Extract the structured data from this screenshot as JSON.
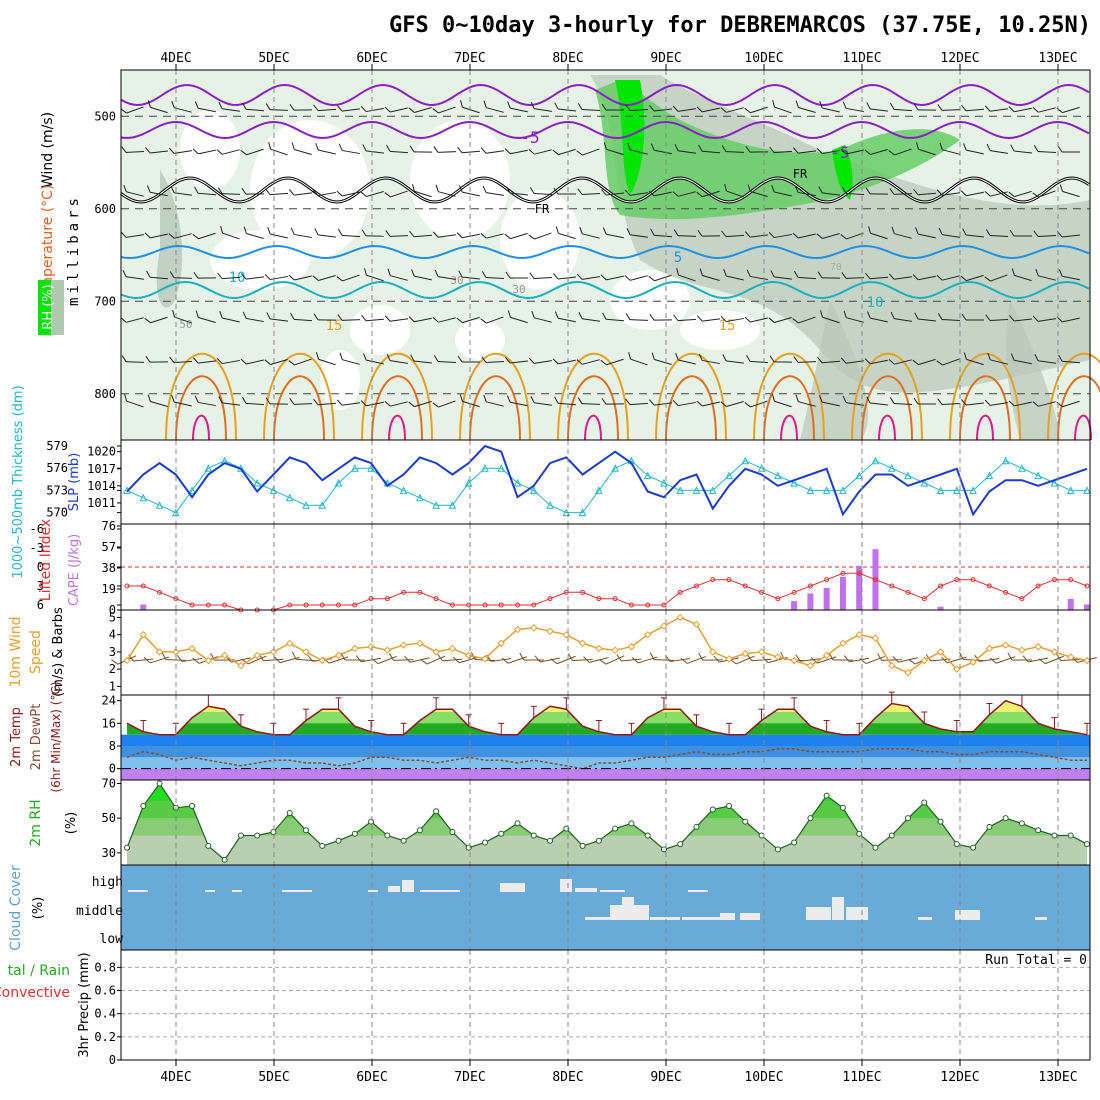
{
  "title": "GFS 0~10day 3-hourly for DEBREMARCOS (37.75E, 10.25N)",
  "dates": [
    "4DEC",
    "5DEC",
    "6DEC",
    "7DEC",
    "8DEC",
    "9DEC",
    "10DEC",
    "11DEC",
    "12DEC",
    "13DEC"
  ],
  "colors": {
    "grid": "#888888",
    "rh_light": "#e6f2e6",
    "rh_mid": "#b8c8b8",
    "rh_green": "#66cc66",
    "rh_bright": "#00e600",
    "temp_neg5": "#8a1fc4",
    "temp_0": "#000000",
    "temp_5": "#1e90e6",
    "temp_10": "#1ab0c0",
    "temp_15": "#e6a020",
    "temp_20": "#e07020",
    "temp_25": "#e01a8c",
    "slp": "#1a3ccf",
    "thickness": "#20b8c8",
    "lifted": "#e03030",
    "cape": "#c070f0",
    "wind": "#e6a030",
    "cloud_bg": "#6aaad8",
    "cloud_fg": "#ececec"
  },
  "panels": {
    "upper": {
      "ylabel_parts": [
        "RH (%)",
        "Temperature (°C)",
        "Wind (m/s)"
      ],
      "ylabel_units": "millibars",
      "yticks": [
        "500",
        "600",
        "700",
        "800"
      ],
      "contour_labels": [
        "-5",
        "-5",
        "FR",
        "FR",
        "5",
        "10",
        "10",
        "15",
        "15",
        "30",
        "30",
        "50",
        "70"
      ]
    },
    "slp": {
      "ylabel_left": "1000~500mb Thickness (dm)",
      "ylabel_right": "SLP (mb)",
      "thick_ticks": [
        "579",
        "576",
        "573",
        "570"
      ],
      "slp_ticks": [
        "1020",
        "1017",
        "1014",
        "1011"
      ]
    },
    "cape": {
      "ylabel_left": "Lifted Index",
      "ylabel_right": "CAPE (J/kg)",
      "li_ticks": [
        "-6",
        "-3",
        "0",
        "3",
        "6"
      ],
      "cape_ticks": [
        "76",
        "57",
        "38",
        "19",
        "0"
      ]
    },
    "wind": {
      "ylabel_left": "10m Wind",
      "ylabel_mid": "Speed",
      "ylabel_right": "(m/s) & Barbs",
      "yticks": [
        "5",
        "4",
        "3",
        "2",
        "1"
      ]
    },
    "temp": {
      "ylabel_1": "2m Temp",
      "ylabel_2": "2m DewPt",
      "ylabel_3": "(6hr Min/Max) (°C)",
      "yticks": [
        "24",
        "16",
        "8",
        "0"
      ]
    },
    "rh": {
      "ylabel_left": "2m RH",
      "ylabel_right": "(%)",
      "yticks": [
        "70",
        "50",
        "30"
      ]
    },
    "cloud": {
      "ylabel_left": "Cloud Cover",
      "ylabel_right": "(%)",
      "levels": [
        "high",
        "middle",
        "low"
      ]
    },
    "precip": {
      "ylabel_1": "tal / Rain",
      "ylabel_2": "Convective",
      "ylabel_3": "3hr Precip (mm)",
      "yticks": [
        "0.8",
        "0.6",
        "0.4",
        "0.2",
        "0"
      ],
      "run_total": "Run Total = 0"
    }
  },
  "chart_data": [
    {
      "type": "line",
      "title": "SLP (mb) & 1000~500mb Thickness (dm)",
      "series": [
        {
          "name": "SLP (mb)",
          "values": [
            1013,
            1016,
            1018,
            1016,
            1012,
            1016,
            1018,
            1017,
            1013,
            1016,
            1019,
            1018,
            1015,
            1017,
            1019,
            1018,
            1014,
            1016,
            1019,
            1018,
            1016,
            1018,
            1021,
            1020,
            1012,
            1014,
            1018,
            1019,
            1016,
            1018,
            1020,
            1018,
            1013,
            1012,
            1015,
            1016,
            1010,
            1014,
            1017,
            1016,
            1014,
            1015,
            1016,
            1017,
            1009,
            1013,
            1016,
            1016,
            1014,
            1015,
            1016,
            1017,
            1009,
            1013,
            1015,
            1015,
            1014,
            1015,
            1016,
            1017
          ]
        },
        {
          "name": "1000~500mb Thickness (dm)",
          "values": [
            573,
            572,
            571,
            570,
            573,
            576,
            577,
            576,
            574,
            573,
            572,
            571,
            571,
            574,
            576,
            576,
            574,
            573,
            572,
            571,
            571,
            574,
            576,
            576,
            574,
            573,
            571,
            570,
            570,
            573,
            576,
            577,
            575,
            574,
            573,
            573,
            573,
            575,
            577,
            576,
            575,
            574,
            573,
            573,
            573,
            575,
            577,
            576,
            575,
            574,
            573,
            573,
            573,
            575,
            577,
            576,
            575,
            574,
            573,
            573
          ]
        }
      ],
      "ylim_slp": [
        1008,
        1021
      ],
      "ylim_thickness": [
        569,
        579
      ]
    },
    {
      "type": "bar",
      "title": "Lifted Index & CAPE (J/kg)",
      "series": [
        {
          "name": "CAPE (J/kg)",
          "values": [
            0,
            5,
            0,
            0,
            0,
            0,
            0,
            0,
            0,
            0,
            0,
            0,
            0,
            0,
            0,
            0,
            0,
            0,
            0,
            0,
            0,
            0,
            0,
            0,
            0,
            0,
            0,
            0,
            0,
            0,
            0,
            0,
            0,
            0,
            0,
            0,
            0,
            0,
            0,
            0,
            0,
            8,
            15,
            20,
            30,
            40,
            55,
            0,
            0,
            0,
            3,
            0,
            0,
            0,
            0,
            0,
            0,
            0,
            10,
            5
          ]
        },
        {
          "name": "Lifted Index",
          "values": [
            3,
            3,
            4,
            5,
            6,
            6,
            6,
            7,
            7,
            7,
            6,
            6,
            6,
            6,
            6,
            5,
            5,
            4,
            4,
            5,
            6,
            6,
            6,
            6,
            6,
            6,
            5,
            4,
            4,
            5,
            5,
            6,
            6,
            6,
            4,
            3,
            2,
            2,
            3,
            4,
            5,
            4,
            3,
            2,
            1,
            1,
            2,
            3,
            4,
            5,
            3,
            2,
            2,
            3,
            4,
            5,
            3,
            2,
            2,
            3
          ]
        }
      ],
      "ylim_li": [
        6,
        -6
      ],
      "ylim_cape": [
        0,
        76
      ]
    },
    {
      "type": "line",
      "title": "10m Wind Speed (m/s)",
      "series": [
        {
          "name": "Speed",
          "values": [
            2.5,
            4,
            3,
            3,
            3.2,
            2.5,
            2.8,
            2.2,
            2.8,
            3,
            3.5,
            3,
            2.5,
            2.8,
            3.2,
            3.3,
            3.1,
            3.4,
            3.5,
            3.0,
            3.2,
            2.8,
            2.6,
            3.5,
            4.3,
            4.4,
            4.2,
            4.0,
            3.5,
            3.2,
            3.1,
            3.3,
            4.0,
            4.5,
            5.0,
            4.6,
            3.0,
            2.6,
            2.9,
            3.0,
            2.7,
            2.5,
            2.2,
            2.8,
            3.5,
            4.0,
            3.8,
            2.2,
            1.8,
            2.5,
            3.0,
            2.0,
            2.4,
            3.2,
            3.4,
            3.1,
            3.3,
            3.0,
            2.7,
            2.5
          ]
        }
      ],
      "ylim": [
        0.5,
        5.2
      ]
    },
    {
      "type": "area",
      "title": "2m Temp / 2m DewPt (°C)",
      "series": [
        {
          "name": "2m Temp",
          "values": [
            16,
            13,
            12,
            12,
            18,
            22,
            21,
            15,
            13,
            12,
            12,
            17,
            21,
            21,
            15,
            13,
            12,
            12,
            17,
            21,
            21,
            15,
            13,
            12,
            12,
            18,
            22,
            21,
            15,
            13,
            12,
            12,
            18,
            21,
            21,
            15,
            13,
            12,
            12,
            17,
            21,
            21,
            15,
            13,
            12,
            12,
            18,
            23,
            22,
            16,
            14,
            13,
            13,
            19,
            24,
            22,
            16,
            14,
            13,
            12
          ]
        },
        {
          "name": "2m DewPt",
          "values": [
            4,
            6,
            5,
            3,
            4,
            3,
            2,
            1,
            2,
            3,
            3,
            2,
            2,
            1,
            2,
            4,
            4,
            3,
            3,
            2,
            3,
            4,
            3,
            3,
            2,
            3,
            2,
            1,
            0,
            2,
            2,
            3,
            4,
            4,
            5,
            6,
            5,
            5,
            6,
            6,
            7,
            7,
            6,
            6,
            6,
            6,
            7,
            7,
            7,
            6,
            6,
            5,
            5,
            6,
            6,
            6,
            5,
            4,
            3,
            3
          ]
        }
      ],
      "ylim": [
        -4,
        26
      ]
    },
    {
      "type": "area",
      "title": "2m RH (%)",
      "series": [
        {
          "name": "2m RH",
          "values": [
            33,
            57,
            70,
            56,
            57,
            34,
            26,
            40,
            40,
            42,
            53,
            43,
            34,
            37,
            41,
            48,
            40,
            37,
            43,
            54,
            42,
            33,
            36,
            41,
            47,
            40,
            37,
            44,
            34,
            37,
            44,
            47,
            40,
            32,
            35,
            45,
            55,
            57,
            48,
            40,
            32,
            36,
            50,
            63,
            56,
            41,
            33,
            40,
            50,
            59,
            48,
            35,
            33,
            45,
            50,
            47,
            43,
            40,
            40,
            35
          ]
        }
      ],
      "ylim": [
        23,
        72
      ]
    }
  ]
}
